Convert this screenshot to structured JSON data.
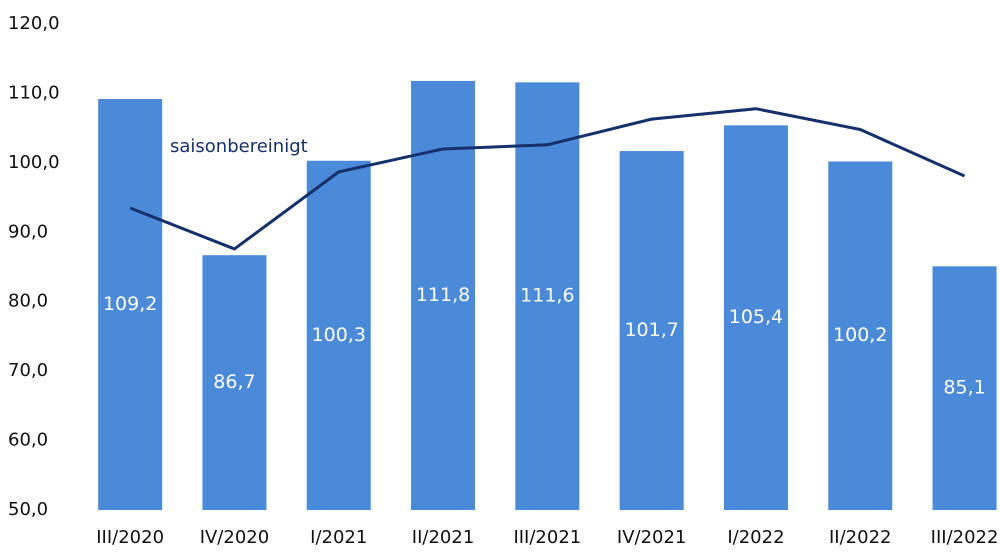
{
  "chart_data": {
    "type": "bar",
    "categories": [
      "III/2020",
      "IV/2020",
      "I/2021",
      "II/2021",
      "III/2021",
      "IV/2021",
      "I/2022",
      "II/2022",
      "III/2022"
    ],
    "series": [
      {
        "type": "bar",
        "color": "#4a8ad9",
        "values": [
          109.2,
          86.7,
          100.3,
          111.8,
          111.6,
          101.7,
          105.4,
          100.2,
          85.1
        ],
        "value_labels": [
          "109,2",
          "86,7",
          "100,3",
          "111,8",
          "111,6",
          "101,7",
          "105,4",
          "100,2",
          "85,1"
        ]
      },
      {
        "type": "line",
        "name": "saisonbereinigt",
        "color": "#15306b",
        "values": [
          93.5,
          87.6,
          98.7,
          102.0,
          102.6,
          106.3,
          107.8,
          104.8,
          98.1
        ]
      }
    ],
    "ylim": [
      50,
      120
    ],
    "yticks": [
      {
        "value": 50,
        "label": "50,0"
      },
      {
        "value": 60,
        "label": "60,0"
      },
      {
        "value": 70,
        "label": "70,0"
      },
      {
        "value": 80,
        "label": "80,0"
      },
      {
        "value": 90,
        "label": "90,0"
      },
      {
        "value": 100,
        "label": "100,0"
      },
      {
        "value": 110,
        "label": "110,0"
      },
      {
        "value": 120,
        "label": "120,0"
      }
    ],
    "grid": false
  }
}
